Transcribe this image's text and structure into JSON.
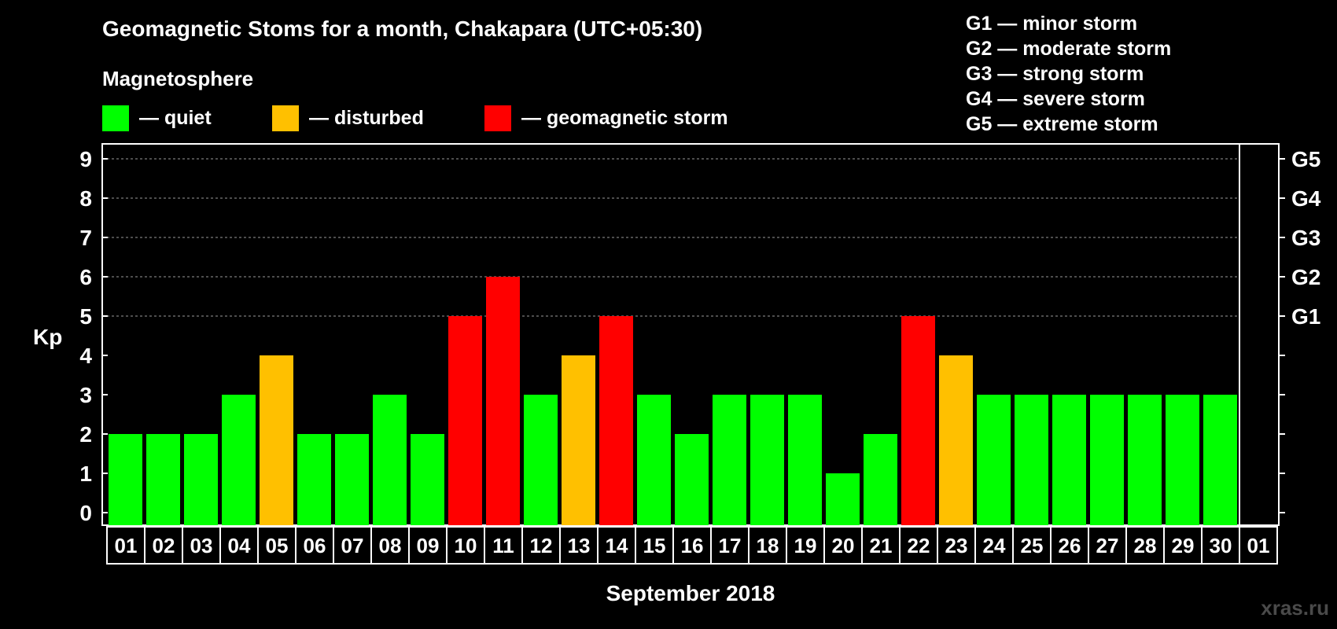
{
  "chart_data": {
    "type": "bar",
    "title": "Geomagnetic Stoms for a month, Chakapara (UTC+05:30)",
    "subtitle": "Magnetosphere",
    "ylabel": "Kp",
    "xlabel": "September 2018",
    "ylim": [
      0,
      9
    ],
    "yticks": [
      0,
      1,
      2,
      3,
      4,
      5,
      6,
      7,
      8,
      9
    ],
    "grid": "dashed horizontal at Kp 5–9",
    "legend": [
      {
        "label": "— quiet",
        "color": "#00ff00"
      },
      {
        "label": "— disturbed",
        "color": "#ffc000"
      },
      {
        "label": "— geomagnetic storm",
        "color": "#ff0000"
      }
    ],
    "storm_scale": [
      "G1 — minor storm",
      "G2 — moderate storm",
      "G3 — strong storm",
      "G4 — severe storm",
      "G5 — extreme storm"
    ],
    "right_axis": [
      {
        "label": "G1",
        "kp": 5
      },
      {
        "label": "G2",
        "kp": 6
      },
      {
        "label": "G3",
        "kp": 7
      },
      {
        "label": "G4",
        "kp": 8
      },
      {
        "label": "G5",
        "kp": 9
      }
    ],
    "categories": [
      "01",
      "02",
      "03",
      "04",
      "05",
      "06",
      "07",
      "08",
      "09",
      "10",
      "11",
      "12",
      "13",
      "14",
      "15",
      "16",
      "17",
      "18",
      "19",
      "20",
      "21",
      "22",
      "23",
      "24",
      "25",
      "26",
      "27",
      "28",
      "29",
      "30",
      "01"
    ],
    "values": [
      2,
      2,
      2,
      3,
      4,
      2,
      2,
      3,
      2,
      5,
      6,
      3,
      4,
      5,
      3,
      2,
      3,
      3,
      3,
      1,
      2,
      5,
      4,
      3,
      3,
      3,
      3,
      3,
      3,
      3,
      null
    ],
    "colors": {
      "quiet": "#00ff00",
      "disturbed": "#ffc000",
      "storm": "#ff0000"
    }
  },
  "watermark": "xras.ru"
}
